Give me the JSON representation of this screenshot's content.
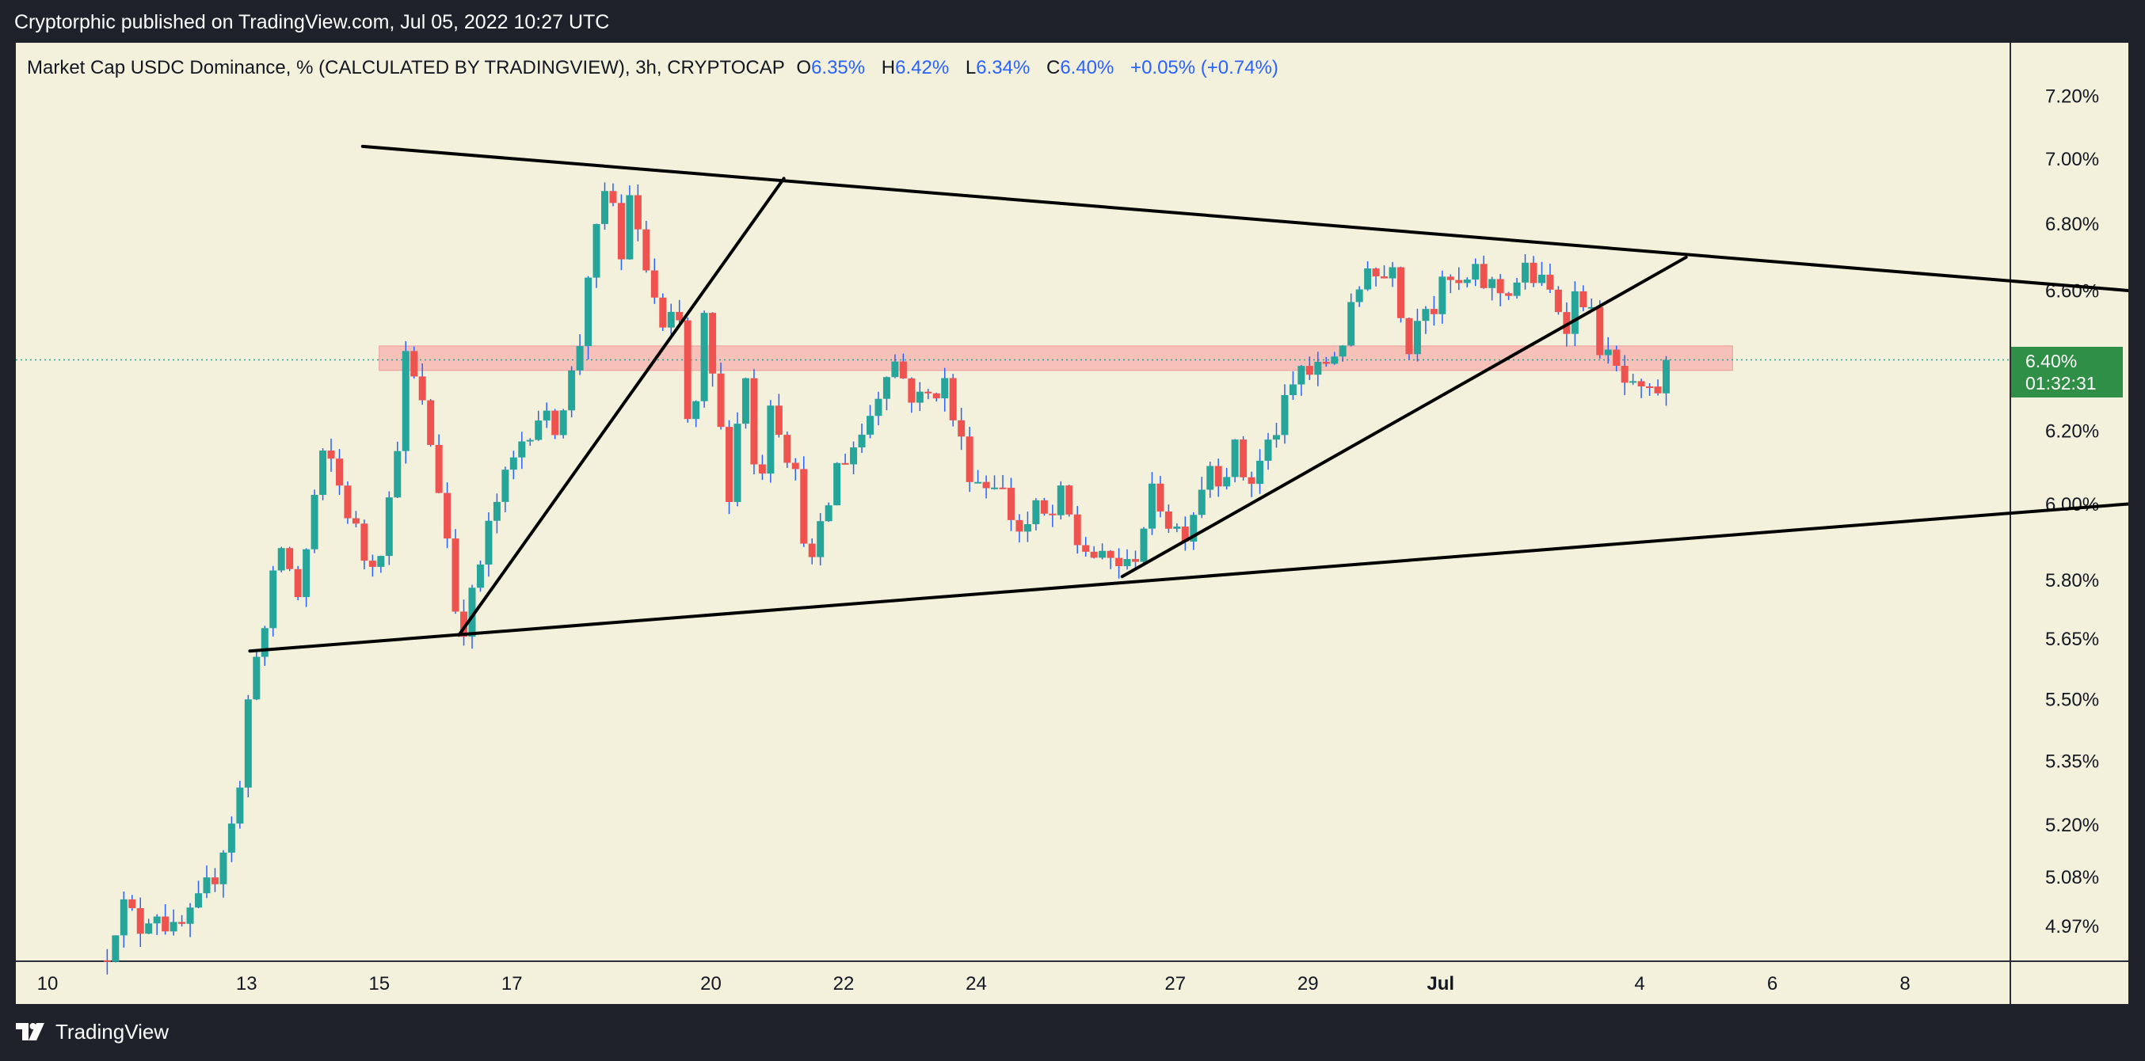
{
  "publisher_line": "Cryptorphic published on TradingView.com, Jul 05, 2022 10:27 UTC",
  "footer": {
    "brand": "TradingView"
  },
  "colors": {
    "background": "#f3f0db",
    "up": "#26a69a",
    "down": "#ef5350",
    "wick": "#2962ff",
    "zone": "#f7b2ae",
    "trendline": "#000000",
    "badge": "#2f8f46"
  },
  "legend": {
    "symbol": "Market Cap USDC Dominance, % (CALCULATED BY TRADINGVIEW), 3h, CRYPTOCAP",
    "o_label": "O",
    "o_value": "6.35%",
    "h_label": "H",
    "h_value": "6.42%",
    "l_label": "L",
    "l_value": "6.34%",
    "c_label": "C",
    "c_value": "6.40%",
    "change": "+0.05% (+0.74%)"
  },
  "last_price": {
    "value": "6.40%",
    "countdown": "01:32:31"
  },
  "chart_data": {
    "type": "candlestick",
    "title": "Market Cap USDC Dominance, % (CALCULATED BY TRADINGVIEW), 3h, CRYPTOCAP",
    "timeframe": "3h",
    "y_scale": "log",
    "y_ticks": [
      "7.20%",
      "7.00%",
      "6.80%",
      "6.60%",
      "6.20%",
      "6.00%",
      "5.80%",
      "5.65%",
      "5.50%",
      "5.35%",
      "5.20%",
      "5.08%",
      "4.97%"
    ],
    "x_ticks": [
      "10",
      "13",
      "15",
      "17",
      "20",
      "22",
      "24",
      "27",
      "29",
      "Jul",
      "4",
      "6",
      "8"
    ],
    "ohlc_path": [
      [
        10.9,
        4.92
      ],
      [
        11.1,
        5.02
      ],
      [
        11.4,
        4.97
      ],
      [
        11.6,
        5.02
      ],
      [
        11.9,
        4.95
      ],
      [
        12.2,
        4.99
      ],
      [
        12.5,
        5.08
      ],
      [
        12.9,
        5.28
      ],
      [
        13.1,
        5.62
      ],
      [
        13.3,
        5.68
      ],
      [
        13.5,
        5.9
      ],
      [
        13.8,
        5.75
      ],
      [
        14.0,
        6.0
      ],
      [
        14.2,
        6.15
      ],
      [
        14.4,
        6.05
      ],
      [
        14.6,
        5.95
      ],
      [
        14.8,
        5.85
      ],
      [
        15.0,
        5.88
      ],
      [
        15.2,
        6.05
      ],
      [
        15.4,
        6.4
      ],
      [
        15.6,
        6.3
      ],
      [
        15.8,
        6.15
      ],
      [
        16.0,
        5.95
      ],
      [
        16.2,
        5.66
      ],
      [
        16.4,
        5.75
      ],
      [
        16.6,
        5.9
      ],
      [
        16.8,
        6.02
      ],
      [
        17.0,
        6.1
      ],
      [
        17.2,
        6.2
      ],
      [
        17.4,
        6.25
      ],
      [
        17.6,
        6.2
      ],
      [
        17.8,
        6.3
      ],
      [
        18.0,
        6.4
      ],
      [
        18.1,
        6.62
      ],
      [
        18.3,
        6.78
      ],
      [
        18.5,
        6.95
      ],
      [
        18.6,
        6.6
      ],
      [
        18.8,
        6.95
      ],
      [
        18.9,
        6.75
      ],
      [
        19.1,
        6.62
      ],
      [
        19.3,
        6.45
      ],
      [
        19.5,
        6.55
      ],
      [
        19.7,
        6.12
      ],
      [
        19.9,
        6.5
      ],
      [
        20.1,
        6.25
      ],
      [
        20.3,
        6.02
      ],
      [
        20.5,
        6.42
      ],
      [
        20.7,
        6.0
      ],
      [
        20.9,
        6.3
      ],
      [
        21.1,
        6.18
      ],
      [
        21.3,
        6.05
      ],
      [
        21.5,
        5.82
      ],
      [
        21.7,
        5.95
      ],
      [
        21.9,
        6.1
      ],
      [
        22.1,
        6.15
      ],
      [
        22.3,
        6.2
      ],
      [
        22.5,
        6.3
      ],
      [
        22.7,
        6.42
      ],
      [
        22.9,
        6.35
      ],
      [
        23.1,
        6.28
      ],
      [
        23.3,
        6.3
      ],
      [
        23.5,
        6.35
      ],
      [
        23.7,
        6.2
      ],
      [
        23.9,
        6.1
      ],
      [
        24.1,
        6.05
      ],
      [
        24.3,
        6.08
      ],
      [
        24.5,
        5.98
      ],
      [
        24.7,
        5.92
      ],
      [
        24.9,
        5.98
      ],
      [
        25.1,
        5.95
      ],
      [
        25.3,
        6.02
      ],
      [
        25.5,
        5.9
      ],
      [
        25.7,
        5.88
      ],
      [
        25.9,
        5.84
      ],
      [
        26.1,
        5.86
      ],
      [
        26.3,
        5.82
      ],
      [
        26.5,
        5.94
      ],
      [
        26.7,
        6.04
      ],
      [
        26.9,
        5.96
      ],
      [
        27.1,
        5.92
      ],
      [
        27.3,
        6.0
      ],
      [
        27.5,
        6.12
      ],
      [
        27.7,
        6.08
      ],
      [
        27.9,
        6.14
      ],
      [
        28.1,
        6.05
      ],
      [
        28.3,
        6.12
      ],
      [
        28.5,
        6.2
      ],
      [
        28.7,
        6.28
      ],
      [
        28.9,
        6.38
      ],
      [
        29.1,
        6.35
      ],
      [
        29.3,
        6.4
      ],
      [
        29.5,
        6.45
      ],
      [
        29.7,
        6.55
      ],
      [
        29.9,
        6.7
      ],
      [
        30.1,
        6.62
      ],
      [
        30.3,
        6.72
      ],
      [
        30.5,
        6.4
      ],
      [
        30.7,
        6.6
      ],
      [
        30.9,
        6.55
      ],
      [
        31.1,
        6.63
      ],
      [
        31.3,
        6.6
      ],
      [
        31.5,
        6.64
      ],
      [
        31.7,
        6.62
      ],
      [
        31.9,
        6.6
      ],
      [
        32.1,
        6.62
      ],
      [
        32.3,
        6.66
      ],
      [
        32.5,
        6.62
      ],
      [
        32.7,
        6.58
      ],
      [
        32.9,
        6.52
      ],
      [
        33.1,
        6.62
      ],
      [
        33.3,
        6.5
      ],
      [
        33.5,
        6.4
      ],
      [
        33.7,
        6.35
      ],
      [
        33.9,
        6.3
      ],
      [
        34.1,
        6.28
      ],
      [
        34.3,
        6.32
      ],
      [
        34.4,
        6.4
      ]
    ],
    "trendlines": [
      {
        "name": "descending-resistance",
        "points": [
          [
            14.75,
            7.04
          ],
          [
            42.7,
            6.58
          ]
        ]
      },
      {
        "name": "ascending-support",
        "points": [
          [
            13.05,
            5.62
          ],
          [
            42.7,
            6.02
          ]
        ]
      },
      {
        "name": "steep-trendline-1",
        "points": [
          [
            16.2,
            5.66
          ],
          [
            21.1,
            6.94
          ]
        ]
      },
      {
        "name": "trendline-2",
        "points": [
          [
            26.2,
            5.81
          ],
          [
            34.7,
            6.7
          ]
        ]
      }
    ],
    "horizontal_zone": {
      "low": 6.37,
      "high": 6.44,
      "x_start": 15.0,
      "x_end": 35.4
    },
    "last_close_line": 6.4
  }
}
